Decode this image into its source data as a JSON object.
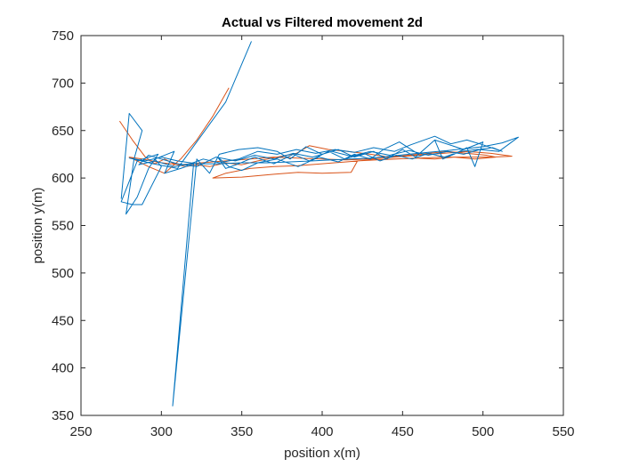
{
  "chart_data": {
    "type": "line",
    "title": "Actual vs Filtered movement 2d",
    "xlabel": "position x(m)",
    "ylabel": "position y(m)",
    "xlim": [
      250,
      550
    ],
    "ylim": [
      350,
      750
    ],
    "xticks": [
      250,
      300,
      350,
      400,
      450,
      500,
      550
    ],
    "yticks": [
      350,
      400,
      450,
      500,
      550,
      600,
      650,
      700,
      750
    ],
    "grid": false,
    "legend": "none",
    "series": [
      {
        "color": "#0072BD",
        "points": [
          [
            275,
            578
          ],
          [
            280,
            668
          ],
          [
            288,
            650
          ],
          [
            283,
            620
          ],
          [
            278,
            562
          ],
          [
            285,
            580
          ],
          [
            292,
            610
          ],
          [
            298,
            625
          ],
          [
            285,
            618
          ],
          [
            275,
            575
          ],
          [
            282,
            572
          ],
          [
            288,
            572
          ],
          [
            300,
            612
          ],
          [
            296,
            620
          ],
          [
            308,
            628
          ],
          [
            302,
            605
          ],
          [
            312,
            610
          ],
          [
            320,
            615
          ],
          [
            307,
            360
          ],
          [
            322,
            620
          ],
          [
            330,
            605
          ],
          [
            336,
            625
          ],
          [
            348,
            630
          ],
          [
            360,
            632
          ],
          [
            372,
            628
          ],
          [
            380,
            620
          ],
          [
            390,
            633
          ],
          [
            400,
            625
          ],
          [
            410,
            630
          ],
          [
            420,
            622
          ],
          [
            432,
            628
          ],
          [
            440,
            620
          ],
          [
            450,
            630
          ],
          [
            458,
            622
          ],
          [
            470,
            640
          ],
          [
            475,
            620
          ],
          [
            482,
            625
          ],
          [
            490,
            632
          ],
          [
            495,
            612
          ],
          [
            500,
            638
          ],
          [
            488,
            630
          ],
          [
            470,
            640
          ],
          [
            460,
            625
          ],
          [
            448,
            638
          ],
          [
            438,
            630
          ],
          [
            430,
            620
          ],
          [
            420,
            625
          ],
          [
            410,
            617
          ],
          [
            398,
            622
          ],
          [
            385,
            612
          ],
          [
            372,
            620
          ],
          [
            360,
            616
          ],
          [
            350,
            608
          ],
          [
            342,
            612
          ],
          [
            335,
            622
          ],
          [
            340,
            610
          ],
          [
            348,
            615
          ],
          [
            358,
            622
          ],
          [
            370,
            615
          ],
          [
            382,
            625
          ],
          [
            392,
            618
          ],
          [
            404,
            628
          ],
          [
            414,
            620
          ],
          [
            426,
            626
          ],
          [
            436,
            618
          ],
          [
            446,
            624
          ],
          [
            456,
            620
          ],
          [
            466,
            626
          ],
          [
            476,
            622
          ],
          [
            486,
            628
          ],
          [
            496,
            630
          ],
          [
            506,
            632
          ],
          [
            512,
            628
          ],
          [
            500,
            635
          ],
          [
            490,
            640
          ],
          [
            480,
            636
          ],
          [
            470,
            644
          ],
          [
            455,
            635
          ],
          [
            445,
            628
          ],
          [
            432,
            632
          ],
          [
            420,
            627
          ],
          [
            408,
            630
          ],
          [
            396,
            626
          ],
          [
            384,
            630
          ],
          [
            372,
            625
          ],
          [
            360,
            628
          ],
          [
            348,
            620
          ],
          [
            336,
            616
          ],
          [
            326,
            620
          ],
          [
            318,
            615
          ],
          [
            308,
            612
          ],
          [
            296,
            618
          ],
          [
            286,
            614
          ],
          [
            292,
            624
          ],
          [
            300,
            620
          ],
          [
            310,
            615
          ],
          [
            322,
            612
          ],
          [
            334,
            622
          ],
          [
            346,
            618
          ],
          [
            358,
            624
          ],
          [
            370,
            620
          ],
          [
            382,
            626
          ],
          [
            394,
            622
          ],
          [
            406,
            628
          ],
          [
            418,
            623
          ],
          [
            430,
            628
          ],
          [
            442,
            624
          ],
          [
            454,
            629
          ],
          [
            466,
            624
          ],
          [
            478,
            628
          ],
          [
            488,
            625
          ],
          [
            498,
            630
          ],
          [
            510,
            628
          ],
          [
            522,
            643
          ],
          [
            512,
            637
          ],
          [
            500,
            633
          ],
          [
            490,
            631
          ],
          [
            478,
            629
          ],
          [
            466,
            627
          ],
          [
            454,
            625
          ],
          [
            442,
            623
          ],
          [
            430,
            621
          ],
          [
            418,
            620
          ],
          [
            406,
            619
          ],
          [
            394,
            618
          ],
          [
            380,
            617
          ],
          [
            366,
            616
          ],
          [
            350,
            616
          ],
          [
            336,
            615
          ],
          [
            322,
            615
          ],
          [
            310,
            618
          ],
          [
            300,
            622
          ],
          [
            290,
            618
          ],
          [
            280,
            621
          ],
          [
            295,
            615
          ],
          [
            310,
            610
          ],
          [
            325,
            645
          ],
          [
            340,
            680
          ],
          [
            356,
            744
          ]
        ]
      },
      {
        "color": "#D95319",
        "points": [
          [
            274,
            660
          ],
          [
            282,
            640
          ],
          [
            290,
            622
          ],
          [
            296,
            615
          ],
          [
            302,
            620
          ],
          [
            308,
            615
          ],
          [
            315,
            612
          ],
          [
            322,
            614
          ],
          [
            330,
            612
          ],
          [
            340,
            616
          ],
          [
            350,
            614
          ],
          [
            360,
            618
          ],
          [
            372,
            622
          ],
          [
            384,
            626
          ],
          [
            392,
            634
          ],
          [
            404,
            630
          ],
          [
            416,
            628
          ],
          [
            430,
            625
          ],
          [
            442,
            622
          ],
          [
            454,
            624
          ],
          [
            466,
            626
          ],
          [
            478,
            628
          ],
          [
            490,
            626
          ],
          [
            502,
            624
          ],
          [
            508,
            622
          ],
          [
            495,
            620
          ],
          [
            482,
            622
          ],
          [
            470,
            620
          ],
          [
            458,
            621
          ],
          [
            446,
            620
          ],
          [
            434,
            619
          ],
          [
            422,
            618
          ],
          [
            418,
            606
          ],
          [
            400,
            605
          ],
          [
            385,
            606
          ],
          [
            370,
            604
          ],
          [
            350,
            601
          ],
          [
            332,
            600
          ],
          [
            340,
            605
          ],
          [
            355,
            610
          ],
          [
            370,
            612
          ],
          [
            385,
            613
          ],
          [
            400,
            615
          ],
          [
            415,
            617
          ],
          [
            430,
            619
          ],
          [
            445,
            620
          ],
          [
            460,
            621
          ],
          [
            475,
            622
          ],
          [
            490,
            622
          ],
          [
            505,
            622
          ],
          [
            518,
            623
          ],
          [
            505,
            626
          ],
          [
            490,
            628
          ],
          [
            475,
            626
          ],
          [
            460,
            624
          ],
          [
            445,
            622
          ],
          [
            430,
            620
          ],
          [
            415,
            619
          ],
          [
            400,
            620
          ],
          [
            385,
            621
          ],
          [
            370,
            622
          ],
          [
            355,
            620
          ],
          [
            340,
            618
          ],
          [
            325,
            616
          ],
          [
            312,
            614
          ],
          [
            300,
            616
          ],
          [
            288,
            620
          ],
          [
            280,
            622
          ],
          [
            292,
            612
          ],
          [
            302,
            605
          ],
          [
            312,
            620
          ],
          [
            322,
            640
          ],
          [
            332,
            665
          ],
          [
            342,
            695
          ]
        ]
      }
    ]
  }
}
